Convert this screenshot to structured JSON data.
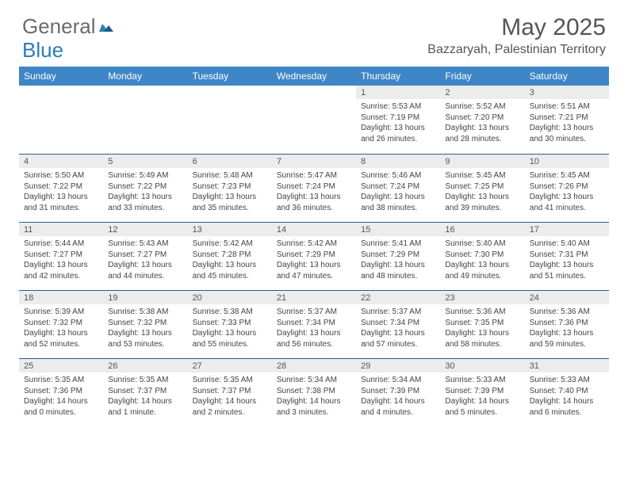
{
  "brand": {
    "part1": "General",
    "part2": "Blue"
  },
  "title": "May 2025",
  "location": "Bazzaryah, Palestinian Territory",
  "colors": {
    "header_bg": "#3f86c6",
    "daynum_bg": "#ececec",
    "row_border": "#2a5d8a",
    "text": "#444444",
    "title": "#555555",
    "logo_gray": "#6b6b6b",
    "logo_blue": "#2a7eb8",
    "background": "#ffffff"
  },
  "weekdays": [
    "Sunday",
    "Monday",
    "Tuesday",
    "Wednesday",
    "Thursday",
    "Friday",
    "Saturday"
  ],
  "weeks": [
    [
      {
        "blank": true
      },
      {
        "blank": true
      },
      {
        "blank": true
      },
      {
        "blank": true
      },
      {
        "day": "1",
        "sunrise": "Sunrise: 5:53 AM",
        "sunset": "Sunset: 7:19 PM",
        "daylight": "Daylight: 13 hours and 26 minutes."
      },
      {
        "day": "2",
        "sunrise": "Sunrise: 5:52 AM",
        "sunset": "Sunset: 7:20 PM",
        "daylight": "Daylight: 13 hours and 28 minutes."
      },
      {
        "day": "3",
        "sunrise": "Sunrise: 5:51 AM",
        "sunset": "Sunset: 7:21 PM",
        "daylight": "Daylight: 13 hours and 30 minutes."
      }
    ],
    [
      {
        "day": "4",
        "sunrise": "Sunrise: 5:50 AM",
        "sunset": "Sunset: 7:22 PM",
        "daylight": "Daylight: 13 hours and 31 minutes."
      },
      {
        "day": "5",
        "sunrise": "Sunrise: 5:49 AM",
        "sunset": "Sunset: 7:22 PM",
        "daylight": "Daylight: 13 hours and 33 minutes."
      },
      {
        "day": "6",
        "sunrise": "Sunrise: 5:48 AM",
        "sunset": "Sunset: 7:23 PM",
        "daylight": "Daylight: 13 hours and 35 minutes."
      },
      {
        "day": "7",
        "sunrise": "Sunrise: 5:47 AM",
        "sunset": "Sunset: 7:24 PM",
        "daylight": "Daylight: 13 hours and 36 minutes."
      },
      {
        "day": "8",
        "sunrise": "Sunrise: 5:46 AM",
        "sunset": "Sunset: 7:24 PM",
        "daylight": "Daylight: 13 hours and 38 minutes."
      },
      {
        "day": "9",
        "sunrise": "Sunrise: 5:45 AM",
        "sunset": "Sunset: 7:25 PM",
        "daylight": "Daylight: 13 hours and 39 minutes."
      },
      {
        "day": "10",
        "sunrise": "Sunrise: 5:45 AM",
        "sunset": "Sunset: 7:26 PM",
        "daylight": "Daylight: 13 hours and 41 minutes."
      }
    ],
    [
      {
        "day": "11",
        "sunrise": "Sunrise: 5:44 AM",
        "sunset": "Sunset: 7:27 PM",
        "daylight": "Daylight: 13 hours and 42 minutes."
      },
      {
        "day": "12",
        "sunrise": "Sunrise: 5:43 AM",
        "sunset": "Sunset: 7:27 PM",
        "daylight": "Daylight: 13 hours and 44 minutes."
      },
      {
        "day": "13",
        "sunrise": "Sunrise: 5:42 AM",
        "sunset": "Sunset: 7:28 PM",
        "daylight": "Daylight: 13 hours and 45 minutes."
      },
      {
        "day": "14",
        "sunrise": "Sunrise: 5:42 AM",
        "sunset": "Sunset: 7:29 PM",
        "daylight": "Daylight: 13 hours and 47 minutes."
      },
      {
        "day": "15",
        "sunrise": "Sunrise: 5:41 AM",
        "sunset": "Sunset: 7:29 PM",
        "daylight": "Daylight: 13 hours and 48 minutes."
      },
      {
        "day": "16",
        "sunrise": "Sunrise: 5:40 AM",
        "sunset": "Sunset: 7:30 PM",
        "daylight": "Daylight: 13 hours and 49 minutes."
      },
      {
        "day": "17",
        "sunrise": "Sunrise: 5:40 AM",
        "sunset": "Sunset: 7:31 PM",
        "daylight": "Daylight: 13 hours and 51 minutes."
      }
    ],
    [
      {
        "day": "18",
        "sunrise": "Sunrise: 5:39 AM",
        "sunset": "Sunset: 7:32 PM",
        "daylight": "Daylight: 13 hours and 52 minutes."
      },
      {
        "day": "19",
        "sunrise": "Sunrise: 5:38 AM",
        "sunset": "Sunset: 7:32 PM",
        "daylight": "Daylight: 13 hours and 53 minutes."
      },
      {
        "day": "20",
        "sunrise": "Sunrise: 5:38 AM",
        "sunset": "Sunset: 7:33 PM",
        "daylight": "Daylight: 13 hours and 55 minutes."
      },
      {
        "day": "21",
        "sunrise": "Sunrise: 5:37 AM",
        "sunset": "Sunset: 7:34 PM",
        "daylight": "Daylight: 13 hours and 56 minutes."
      },
      {
        "day": "22",
        "sunrise": "Sunrise: 5:37 AM",
        "sunset": "Sunset: 7:34 PM",
        "daylight": "Daylight: 13 hours and 57 minutes."
      },
      {
        "day": "23",
        "sunrise": "Sunrise: 5:36 AM",
        "sunset": "Sunset: 7:35 PM",
        "daylight": "Daylight: 13 hours and 58 minutes."
      },
      {
        "day": "24",
        "sunrise": "Sunrise: 5:36 AM",
        "sunset": "Sunset: 7:36 PM",
        "daylight": "Daylight: 13 hours and 59 minutes."
      }
    ],
    [
      {
        "day": "25",
        "sunrise": "Sunrise: 5:35 AM",
        "sunset": "Sunset: 7:36 PM",
        "daylight": "Daylight: 14 hours and 0 minutes."
      },
      {
        "day": "26",
        "sunrise": "Sunrise: 5:35 AM",
        "sunset": "Sunset: 7:37 PM",
        "daylight": "Daylight: 14 hours and 1 minute."
      },
      {
        "day": "27",
        "sunrise": "Sunrise: 5:35 AM",
        "sunset": "Sunset: 7:37 PM",
        "daylight": "Daylight: 14 hours and 2 minutes."
      },
      {
        "day": "28",
        "sunrise": "Sunrise: 5:34 AM",
        "sunset": "Sunset: 7:38 PM",
        "daylight": "Daylight: 14 hours and 3 minutes."
      },
      {
        "day": "29",
        "sunrise": "Sunrise: 5:34 AM",
        "sunset": "Sunset: 7:39 PM",
        "daylight": "Daylight: 14 hours and 4 minutes."
      },
      {
        "day": "30",
        "sunrise": "Sunrise: 5:33 AM",
        "sunset": "Sunset: 7:39 PM",
        "daylight": "Daylight: 14 hours and 5 minutes."
      },
      {
        "day": "31",
        "sunrise": "Sunrise: 5:33 AM",
        "sunset": "Sunset: 7:40 PM",
        "daylight": "Daylight: 14 hours and 6 minutes."
      }
    ]
  ]
}
